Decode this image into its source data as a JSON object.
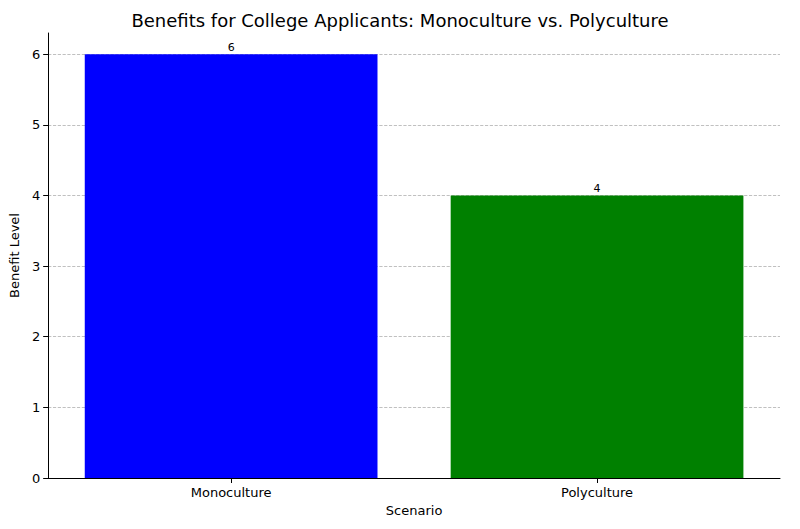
{
  "chart_data": {
    "type": "bar",
    "title": "Benefits for College Applicants: Monoculture vs. Polyculture",
    "x_label": "Scenario",
    "y_label": "Benefit Level",
    "categories": [
      "Monoculture",
      "Polyculture"
    ],
    "values": [
      6,
      4
    ],
    "colors": [
      "#0000ff",
      "#008000"
    ],
    "ylim": [
      0,
      6.3
    ],
    "yticks": [
      0,
      1,
      2,
      3,
      4,
      5,
      6
    ],
    "grid": true,
    "data_labels": true
  }
}
